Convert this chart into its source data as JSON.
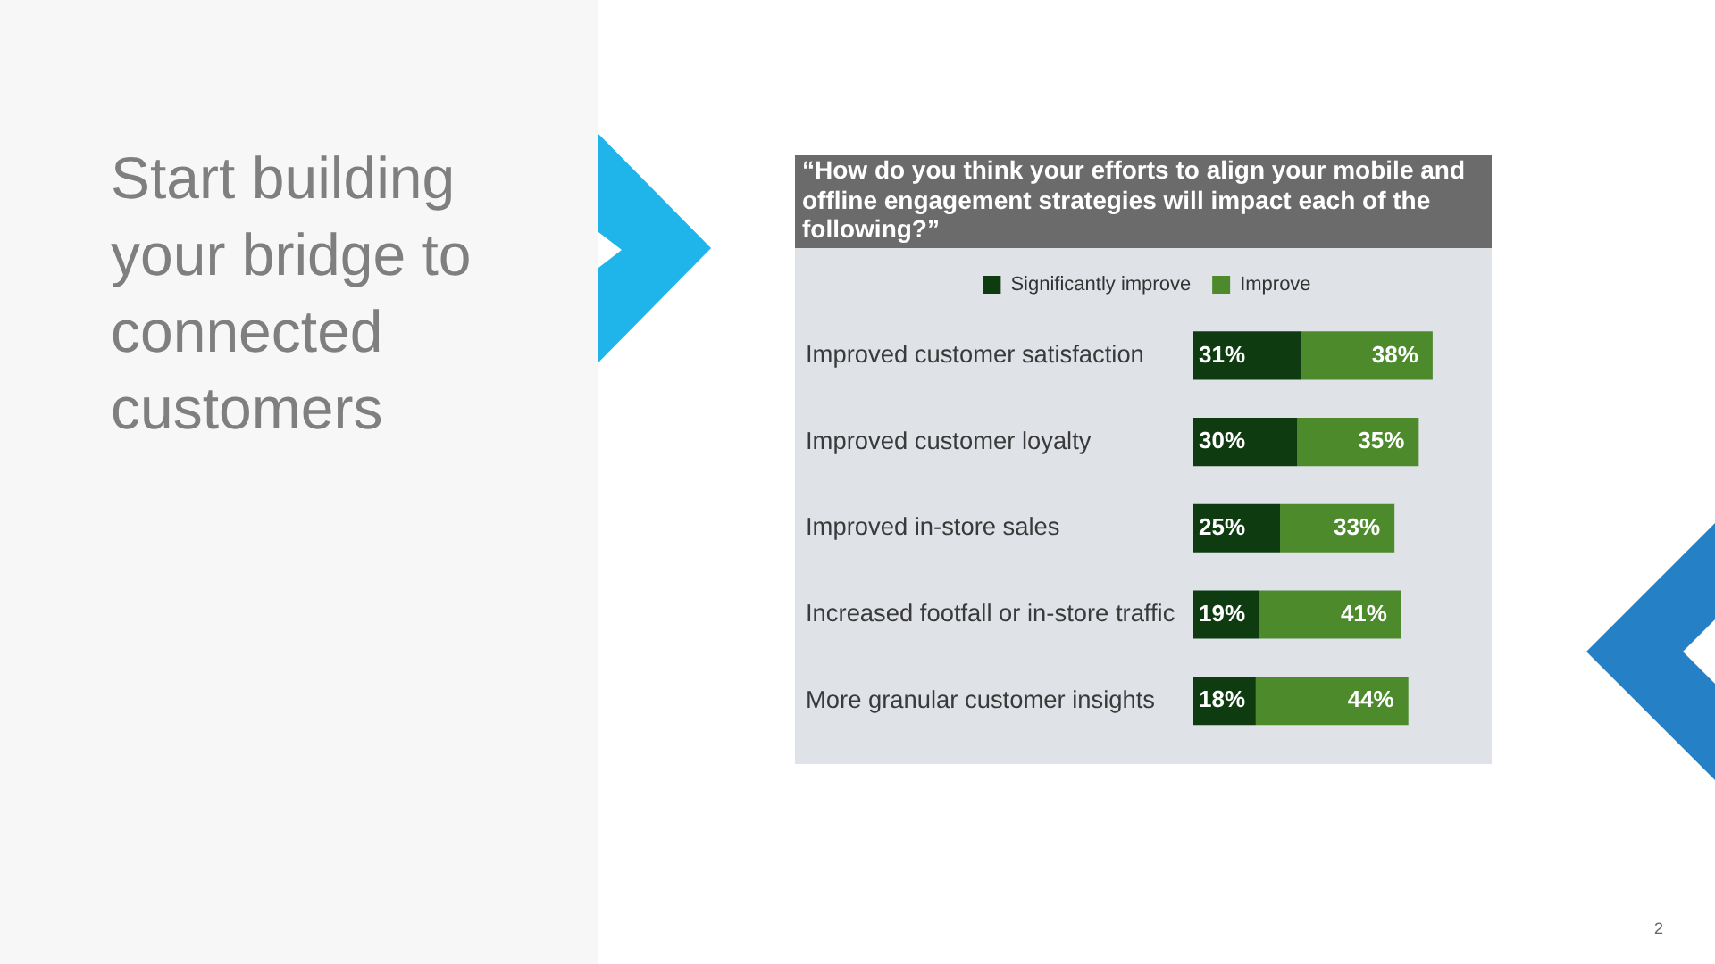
{
  "chart_data": {
    "type": "bar",
    "orientation": "horizontal",
    "stacked": true,
    "title": "Start building your bridge to connected customers",
    "subtitle": "“How do you think your efforts to align your mobile and offline engagement strategies will impact each of the following?”",
    "annotations": [
      "2"
    ],
    "categories": [
      "Improved customer satisfaction",
      "Improved customer loyalty",
      "Improved in-store sales",
      "Increased footfall or in-store traffic",
      "More granular customer insights"
    ],
    "series": [
      {
        "name": "Significantly improve",
        "color": "#0e3c10",
        "values": [
          31,
          30,
          25,
          19,
          18
        ],
        "value_labels": [
          "31%",
          "30%",
          "25%",
          "19%",
          "18%"
        ]
      },
      {
        "name": "Improve",
        "color": "#4c8a2c",
        "values": [
          38,
          35,
          33,
          41,
          44
        ],
        "value_labels": [
          "38%",
          "35%",
          "33%",
          "41%",
          "44%"
        ]
      }
    ],
    "xlim": [
      0,
      85
    ],
    "tick_labels": "y",
    "legend": "top"
  }
}
